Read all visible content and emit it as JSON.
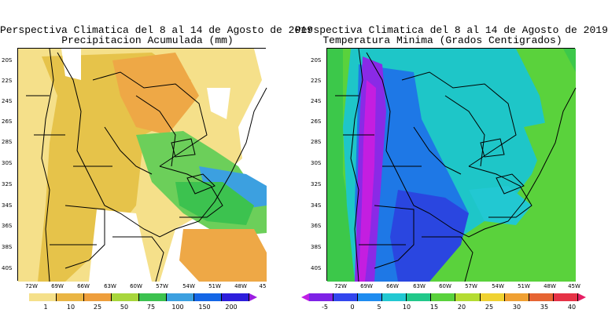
{
  "left": {
    "title_line1": "Perspectiva Climatica del 8 al 14 de Agosto de 2019",
    "title_line2": "Precipitacion Acumulada (mm)",
    "lat_labels": [
      "20S",
      "22S",
      "24S",
      "26S",
      "28S",
      "30S",
      "32S",
      "34S",
      "36S",
      "38S",
      "40S"
    ],
    "lon_labels": [
      "72W",
      "69W",
      "66W",
      "63W",
      "60W",
      "57W",
      "54W",
      "51W",
      "48W",
      "45"
    ],
    "colorbar": {
      "colors": [
        "#ffffff",
        "#f5e08a",
        "#eab543",
        "#ee9e3c",
        "#a8d63c",
        "#3cc24f",
        "#3ca0e0",
        "#1466e6",
        "#2d1edc",
        "#9b1ee0"
      ],
      "labels": [
        "1",
        "10",
        "25",
        "50",
        "75",
        "100",
        "150",
        "200"
      ]
    }
  },
  "right": {
    "title_line1": "Perspectiva Climatica del 8 al 14 de Agosto de 2019",
    "title_line2": "Temperatura Minima (Grados Centigrados)",
    "lat_labels": [
      "20S",
      "22S",
      "24S",
      "26S",
      "28S",
      "30S",
      "32S",
      "34S",
      "36S",
      "38S",
      "40S"
    ],
    "lon_labels": [
      "72W",
      "69W",
      "66W",
      "63W",
      "60W",
      "57W",
      "54W",
      "51W",
      "48W",
      "45W"
    ],
    "colorbar": {
      "colors": [
        "#c01ee6",
        "#7e22e6",
        "#3246ee",
        "#1e8cf0",
        "#22c8d2",
        "#21c88a",
        "#5ad23c",
        "#b4dc32",
        "#f0d232",
        "#f0a032",
        "#e66432",
        "#e63246",
        "#e61e64"
      ],
      "labels": [
        "-5",
        "0",
        "5",
        "10",
        "15",
        "20",
        "25",
        "30",
        "35",
        "40"
      ]
    }
  },
  "colors": {
    "precip_white": "#ffffff",
    "precip_light": "#f5e08a",
    "precip_yellow": "#e6c34a",
    "precip_orange": "#eea846",
    "precip_green": "#6ccf5a",
    "precip_blue": "#3ca0e0",
    "temp_green": "#3cc84a",
    "temp_cyan": "#1ec6c8",
    "temp_blue": "#1e78e6",
    "temp_dark": "#2a46e0",
    "temp_purple": "#8a2ae6",
    "temp_magenta": "#c41ee0"
  }
}
